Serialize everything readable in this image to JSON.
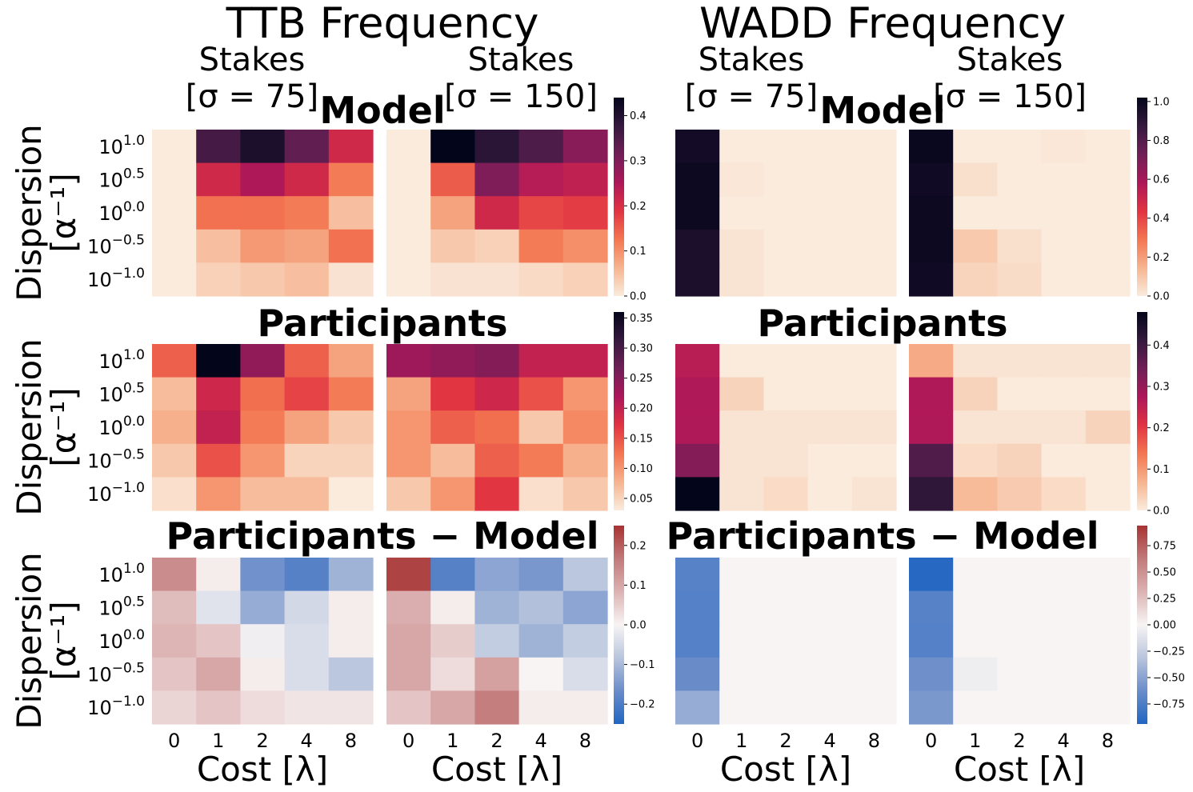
{
  "figure": {
    "col_titles": [
      "TTB Frequency",
      "WADD Frequency"
    ],
    "panel_headers": [
      {
        "line1": "Stakes",
        "line2": "[σ = 75]"
      },
      {
        "line1": "Stakes",
        "line2": "[σ = 150]"
      },
      {
        "line1": "Stakes",
        "line2": "[σ = 75]"
      },
      {
        "line1": "Stakes",
        "line2": "[σ = 150]"
      }
    ],
    "row_titles": [
      "Model",
      "Participants",
      "Participants − Model"
    ],
    "ylabel_line1": "Dispersion",
    "ylabel_line2": "[α⁻¹]",
    "xlabel": "Cost [λ]",
    "x_ticks": [
      "0",
      "1",
      "2",
      "4",
      "8"
    ],
    "y_ticks": [
      {
        "base": "10",
        "exp": "1.0"
      },
      {
        "base": "10",
        "exp": "0.5"
      },
      {
        "base": "10",
        "exp": "0.0"
      },
      {
        "base": "10",
        "exp": "−0.5"
      },
      {
        "base": "10",
        "exp": "−1.0"
      }
    ],
    "colormaps": {
      "sequential": [
        "#faebdd",
        "#f6b48f",
        "#f37651",
        "#e13342",
        "#ad1759",
        "#701f57",
        "#35193e",
        "#03051a"
      ],
      "diverging": [
        "#2166c2",
        "#6a8cc9",
        "#b8c5dd",
        "#f8f4f4",
        "#dcb2b2",
        "#c27a7a",
        "#a83232"
      ]
    }
  },
  "chart_data": [
    {
      "type": "heatmap",
      "panel": "TTB-Model",
      "x": [
        "0",
        "1",
        "2",
        "4",
        "8"
      ],
      "y": [
        "10^1.0",
        "10^0.5",
        "10^0.0",
        "10^-0.5",
        "10^-1.0"
      ],
      "ranges": [
        {
          "group": "σ = 75",
          "values": [
            [
              0.0,
              0.36,
              0.41,
              0.33,
              0.21
            ],
            [
              0.0,
              0.21,
              0.25,
              0.21,
              0.12
            ],
            [
              0.0,
              0.13,
              0.13,
              0.12,
              0.05
            ],
            [
              0.0,
              0.05,
              0.09,
              0.08,
              0.13
            ],
            [
              0.0,
              0.03,
              0.04,
              0.05,
              0.01
            ]
          ]
        },
        {
          "group": "σ = 150",
          "values": [
            [
              0.0,
              0.44,
              0.39,
              0.35,
              0.29
            ],
            [
              0.0,
              0.15,
              0.3,
              0.24,
              0.23
            ],
            [
              0.0,
              0.08,
              0.21,
              0.17,
              0.18
            ],
            [
              0.0,
              0.04,
              0.03,
              0.12,
              0.1
            ],
            [
              0.0,
              0.01,
              0.01,
              0.02,
              0.03
            ]
          ]
        }
      ],
      "colorbar": {
        "min": 0.0,
        "max": 0.44,
        "ticks": [
          0.0,
          0.1,
          0.2,
          0.3,
          0.4
        ],
        "tick_labels": [
          "0.0",
          "0.1",
          "0.2",
          "0.3",
          "0.4"
        ],
        "cmap": "sequential"
      }
    },
    {
      "type": "heatmap",
      "panel": "TTB-Participants",
      "x": [
        "0",
        "1",
        "2",
        "4",
        "8"
      ],
      "y": [
        "10^1.0",
        "10^0.5",
        "10^0.0",
        "10^-0.5",
        "10^-1.0"
      ],
      "ranges": [
        {
          "group": "σ = 75",
          "values": [
            [
              0.14,
              0.36,
              0.24,
              0.14,
              0.09
            ],
            [
              0.07,
              0.19,
              0.13,
              0.16,
              0.12
            ],
            [
              0.08,
              0.2,
              0.12,
              0.09,
              0.06
            ],
            [
              0.06,
              0.15,
              0.1,
              0.05,
              0.05
            ],
            [
              0.04,
              0.1,
              0.07,
              0.07,
              0.03
            ]
          ]
        },
        {
          "group": "σ = 150",
          "values": [
            [
              0.23,
              0.24,
              0.25,
              0.2,
              0.2
            ],
            [
              0.09,
              0.17,
              0.19,
              0.15,
              0.1
            ],
            [
              0.1,
              0.14,
              0.13,
              0.06,
              0.11
            ],
            [
              0.1,
              0.07,
              0.14,
              0.12,
              0.08
            ],
            [
              0.06,
              0.1,
              0.17,
              0.04,
              0.06
            ]
          ]
        }
      ],
      "colorbar": {
        "min": 0.03,
        "max": 0.36,
        "ticks": [
          0.05,
          0.1,
          0.15,
          0.2,
          0.25,
          0.3,
          0.35
        ],
        "tick_labels": [
          "0.05",
          "0.10",
          "0.15",
          "0.20",
          "0.25",
          "0.30",
          "0.35"
        ],
        "cmap": "sequential"
      }
    },
    {
      "type": "heatmap",
      "panel": "TTB-Participants-Model",
      "x": [
        "0",
        "1",
        "2",
        "4",
        "8"
      ],
      "y": [
        "10^1.0",
        "10^0.5",
        "10^0.0",
        "10^-0.5",
        "10^-1.0"
      ],
      "ranges": [
        {
          "group": "σ = 75",
          "values": [
            [
              0.14,
              0.01,
              -0.16,
              -0.19,
              -0.11
            ],
            [
              0.07,
              -0.03,
              -0.12,
              -0.05,
              0.01
            ],
            [
              0.08,
              0.06,
              -0.01,
              -0.04,
              0.01
            ],
            [
              0.06,
              0.1,
              0.01,
              -0.04,
              -0.08
            ],
            [
              0.04,
              0.06,
              0.03,
              0.02,
              0.02
            ]
          ]
        },
        {
          "group": "σ = 150",
          "values": [
            [
              0.23,
              -0.19,
              -0.13,
              -0.15,
              -0.08
            ],
            [
              0.09,
              0.01,
              -0.11,
              -0.09,
              -0.13
            ],
            [
              0.1,
              0.05,
              -0.07,
              -0.11,
              -0.07
            ],
            [
              0.1,
              0.03,
              0.11,
              0.0,
              -0.04
            ],
            [
              0.06,
              0.1,
              0.16,
              0.01,
              0.01
            ]
          ]
        }
      ],
      "colorbar": {
        "min": -0.25,
        "max": 0.25,
        "ticks": [
          -0.2,
          -0.1,
          0.0,
          0.1,
          0.2
        ],
        "tick_labels": [
          "−0.2",
          "−0.1",
          "0.0",
          "0.1",
          "0.2"
        ],
        "cmap": "diverging"
      }
    },
    {
      "type": "heatmap",
      "panel": "WADD-Model",
      "x": [
        "0",
        "1",
        "2",
        "4",
        "8"
      ],
      "y": [
        "10^1.0",
        "10^0.5",
        "10^0.0",
        "10^-0.5",
        "10^-1.0"
      ],
      "ranges": [
        {
          "group": "σ = 75",
          "values": [
            [
              0.97,
              0.0,
              0.0,
              0.0,
              0.0
            ],
            [
              0.99,
              0.01,
              0.0,
              0.0,
              0.0
            ],
            [
              0.99,
              0.0,
              0.0,
              0.0,
              0.0
            ],
            [
              0.95,
              0.02,
              0.0,
              0.0,
              0.0
            ],
            [
              0.95,
              0.02,
              0.0,
              0.0,
              0.0
            ]
          ]
        },
        {
          "group": "σ = 150",
          "values": [
            [
              1.0,
              0.0,
              0.0,
              0.01,
              0.0
            ],
            [
              0.98,
              0.03,
              0.0,
              0.0,
              0.0
            ],
            [
              0.99,
              0.0,
              0.0,
              0.0,
              0.0
            ],
            [
              0.99,
              0.09,
              0.03,
              0.0,
              0.0
            ],
            [
              0.98,
              0.06,
              0.04,
              0.0,
              0.0
            ]
          ]
        }
      ],
      "colorbar": {
        "min": 0.0,
        "max": 1.02,
        "ticks": [
          0.0,
          0.2,
          0.4,
          0.6,
          0.8,
          1.0
        ],
        "tick_labels": [
          "0.0",
          "0.2",
          "0.4",
          "0.6",
          "0.8",
          "1.0"
        ],
        "cmap": "sequential"
      }
    },
    {
      "type": "heatmap",
      "panel": "WADD-Participants",
      "x": [
        "0",
        "1",
        "2",
        "4",
        "8"
      ],
      "y": [
        "10^1.0",
        "10^0.5",
        "10^0.0",
        "10^-0.5",
        "10^-1.0"
      ],
      "ranges": [
        {
          "group": "σ = 75",
          "values": [
            [
              0.26,
              0.0,
              0.0,
              0.0,
              0.0
            ],
            [
              0.27,
              0.03,
              0.0,
              0.0,
              0.0
            ],
            [
              0.27,
              0.01,
              0.01,
              0.01,
              0.01
            ],
            [
              0.32,
              0.01,
              0.01,
              0.0,
              0.0
            ],
            [
              0.48,
              0.01,
              0.02,
              0.0,
              0.01
            ]
          ]
        },
        {
          "group": "σ = 150",
          "values": [
            [
              0.08,
              0.01,
              0.01,
              0.01,
              0.01
            ],
            [
              0.27,
              0.03,
              0.0,
              0.0,
              0.0
            ],
            [
              0.27,
              0.01,
              0.01,
              0.01,
              0.03
            ],
            [
              0.38,
              0.02,
              0.03,
              0.0,
              0.0
            ],
            [
              0.42,
              0.06,
              0.04,
              0.02,
              0.0
            ]
          ]
        }
      ],
      "colorbar": {
        "min": 0.0,
        "max": 0.48,
        "ticks": [
          0.0,
          0.1,
          0.2,
          0.3,
          0.4
        ],
        "tick_labels": [
          "0.0",
          "0.1",
          "0.2",
          "0.3",
          "0.4"
        ],
        "cmap": "sequential"
      }
    },
    {
      "type": "heatmap",
      "panel": "WADD-Participants-Model",
      "x": [
        "0",
        "1",
        "2",
        "4",
        "8"
      ],
      "y": [
        "10^1.0",
        "10^0.5",
        "10^0.0",
        "10^-0.5",
        "10^-1.0"
      ],
      "ranges": [
        {
          "group": "σ = 75",
          "values": [
            [
              -0.71,
              0.0,
              0.0,
              0.0,
              0.0
            ],
            [
              -0.72,
              0.0,
              0.0,
              0.0,
              0.0
            ],
            [
              -0.72,
              0.0,
              0.0,
              0.0,
              0.0
            ],
            [
              -0.63,
              0.0,
              0.0,
              0.0,
              0.0
            ],
            [
              -0.45,
              0.0,
              0.0,
              0.0,
              0.0
            ]
          ]
        },
        {
          "group": "σ = 150",
          "values": [
            [
              -0.92,
              0.0,
              0.0,
              0.0,
              0.0
            ],
            [
              -0.71,
              0.0,
              0.0,
              0.0,
              0.0
            ],
            [
              -0.72,
              0.0,
              0.0,
              0.0,
              0.0
            ],
            [
              -0.61,
              -0.05,
              0.0,
              0.0,
              0.0
            ],
            [
              -0.56,
              0.0,
              0.0,
              0.0,
              0.0
            ]
          ]
        }
      ],
      "colorbar": {
        "min": -0.94,
        "max": 0.94,
        "ticks": [
          -0.75,
          -0.5,
          -0.25,
          0.0,
          0.25,
          0.5,
          0.75
        ],
        "tick_labels": [
          "−0.75",
          "−0.50",
          "−0.25",
          "0.00",
          "0.25",
          "0.50",
          "0.75"
        ],
        "cmap": "diverging"
      }
    }
  ]
}
